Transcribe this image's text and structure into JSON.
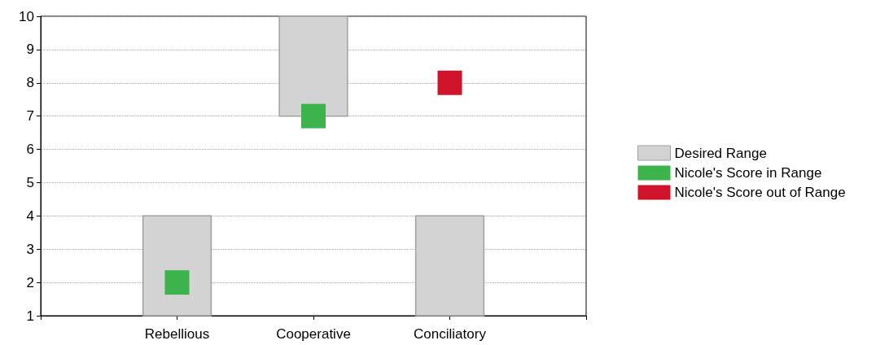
{
  "chart_data": {
    "type": "bar",
    "categories": [
      null,
      "Rebellious",
      "Cooperative",
      "Conciliatory",
      null
    ],
    "series": [
      {
        "name": "Desired Range",
        "color": "#d3d3d3",
        "base": [
          null,
          1,
          7,
          1,
          null
        ],
        "values": [
          null,
          3,
          3,
          3,
          null
        ]
      },
      {
        "name": "Nicole's Score in Range",
        "type": "scatter",
        "color": "#3cb44b",
        "x": [
          "Rebellious",
          "Cooperative"
        ],
        "values": [
          2,
          7
        ]
      },
      {
        "name": "Nicole's Score out of Range",
        "type": "scatter",
        "color": "#d0142c",
        "x": [
          "Conciliatory"
        ],
        "values": [
          8
        ]
      }
    ],
    "ylim": [
      1,
      10
    ],
    "yticks": [
      1,
      2,
      3,
      4,
      5,
      6,
      7,
      8,
      9,
      10
    ],
    "grid": "y",
    "legend": "right",
    "marker": "square"
  }
}
